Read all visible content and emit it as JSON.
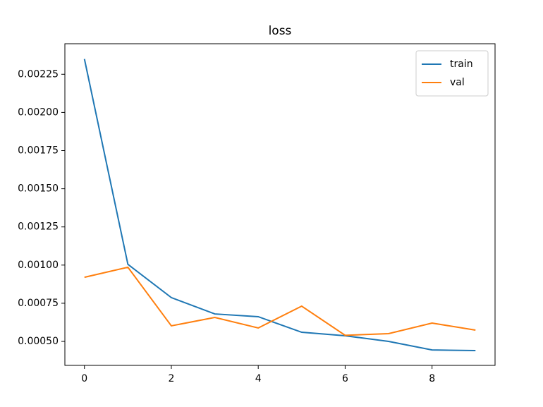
{
  "chart_data": {
    "type": "line",
    "title": "loss",
    "x": [
      0,
      1,
      2,
      3,
      4,
      5,
      6,
      7,
      8,
      9
    ],
    "series": [
      {
        "name": "train",
        "color": "#1f77b4",
        "values": [
          0.00235,
          0.001005,
          0.000787,
          0.00068,
          0.000662,
          0.00056,
          0.000537,
          0.0005,
          0.000444,
          0.00044
        ]
      },
      {
        "name": "val",
        "color": "#ff7f0e",
        "values": [
          0.00092,
          0.000986,
          0.000602,
          0.000657,
          0.000588,
          0.000731,
          0.00054,
          0.000551,
          0.00062,
          0.000574
        ]
      }
    ],
    "xlim": [
      -0.45,
      9.45
    ],
    "xticks": [
      0,
      2,
      4,
      6,
      8
    ],
    "ylim": [
      0.000343,
      0.00245
    ],
    "yticks": [
      {
        "value": 0.0005,
        "label": "0.00050"
      },
      0.00075,
      {
        "value": 0.001,
        "label": "0.00100"
      },
      0.00125,
      {
        "value": 0.0015,
        "label": "0.00150"
      },
      0.00175,
      {
        "value": 0.002,
        "label": "0.00200"
      },
      0.00225
    ],
    "legend": "upper right",
    "grid": false
  }
}
